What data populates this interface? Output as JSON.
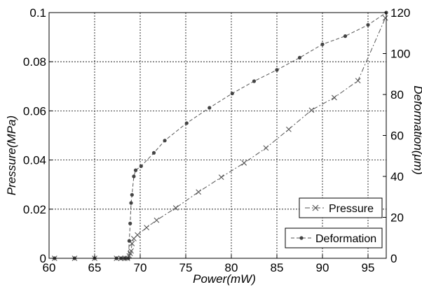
{
  "chart_data": {
    "type": "line",
    "title": "",
    "xlabel": "Power(mW)",
    "ylabel_left": "Pressure(MPa)",
    "ylabel_right": "Deformation(μm)",
    "xlim": [
      60,
      97
    ],
    "ylim_left": [
      0,
      0.1
    ],
    "ylim_right": [
      0,
      120
    ],
    "x_ticks": [
      60,
      65,
      70,
      75,
      80,
      85,
      90,
      95
    ],
    "x_tick_labels": [
      "60",
      "65",
      "70",
      "75",
      "80",
      "85",
      "90",
      "95"
    ],
    "y_left_ticks": [
      0,
      0.02,
      0.04,
      0.06,
      0.08,
      0.1
    ],
    "y_left_tick_labels": [
      "0",
      "0.02",
      "0.04",
      "0.06",
      "0.08",
      "0.1"
    ],
    "y_right_ticks": [
      0,
      20,
      40,
      60,
      80,
      100,
      120
    ],
    "y_right_tick_labels": [
      "0",
      "20",
      "40",
      "60",
      "80",
      "100",
      "120"
    ],
    "grid": true,
    "series": [
      {
        "name": "Pressure",
        "axis": "left",
        "marker": "x",
        "line_style": "dash-dot",
        "color": "#555555",
        "x": [
          60.6,
          62.8,
          65.0,
          67.4,
          67.9,
          68.3,
          68.6,
          68.8,
          68.9,
          69.0,
          69.1,
          69.3,
          69.7,
          70.7,
          71.8,
          73.9,
          76.4,
          78.9,
          81.4,
          83.8,
          86.3,
          88.8,
          91.3,
          93.9,
          96.9
        ],
        "y": [
          0.0,
          0.0,
          0.0,
          0.0,
          0.0,
          0.0,
          0.0,
          0.001,
          0.002,
          0.003,
          0.006,
          0.008,
          0.0095,
          0.0125,
          0.0155,
          0.0205,
          0.027,
          0.033,
          0.0388,
          0.0449,
          0.0525,
          0.0603,
          0.0654,
          0.0723,
          0.0978
        ]
      },
      {
        "name": "Deformation",
        "axis": "right",
        "marker": "dot",
        "line_style": "dash",
        "color": "#555555",
        "x": [
          60.6,
          62.8,
          65.0,
          67.4,
          67.9,
          68.3,
          68.7,
          68.8,
          68.9,
          69.0,
          69.1,
          69.3,
          69.5,
          70.1,
          71.5,
          72.7,
          75.1,
          77.6,
          80.1,
          82.5,
          85.0,
          87.5,
          90.0,
          92.5,
          95.0,
          97.0
        ],
        "y": [
          0,
          0,
          0,
          0,
          0,
          0,
          0,
          8.5,
          17,
          27,
          31,
          40,
          43,
          45,
          51.5,
          57.5,
          66,
          73.5,
          80.5,
          86.5,
          92,
          98,
          104.5,
          108.5,
          114,
          120
        ]
      }
    ],
    "legend": [
      {
        "name": "Pressure",
        "position": "right-middle"
      },
      {
        "name": "Deformation",
        "position": "bottom-right"
      }
    ]
  }
}
